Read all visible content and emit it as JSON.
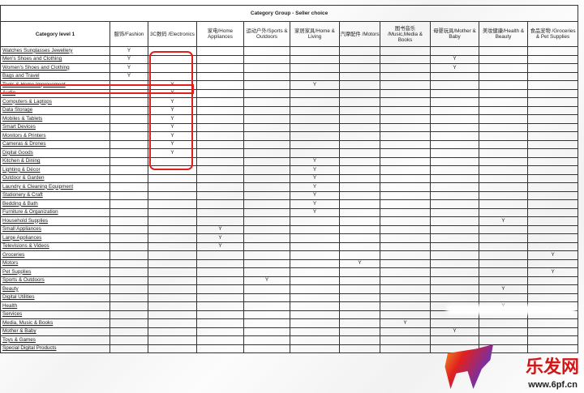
{
  "table": {
    "group_title": "Category Group - Seller choice",
    "first_header": "Category level 1",
    "columns": [
      "服饰/Fashion",
      "3C数码 /Electronics",
      "家电/Home Appliances",
      "运动户外/Sports & Outdoors",
      "家居家具/Home & Living",
      "汽摩配件 /Motors",
      "图书音乐 /Music,Media & Books",
      "母婴玩具/Mother & Baby",
      "美妆健康/Health & Beauty",
      "食品宠物 /Groceries & Pet Supplies"
    ],
    "mark": "Y",
    "rows": [
      {
        "label": "Watches Sunglasses Jewellery",
        "y": [
          0
        ]
      },
      {
        "label": "Men's Shoes and Clothing",
        "y": [
          0,
          7
        ]
      },
      {
        "label": "Women's Shoes and Clothing",
        "y": [
          0,
          7
        ]
      },
      {
        "label": "Bags and Travel",
        "y": [
          0
        ]
      },
      {
        "label": "Tools & Home Improvement",
        "y": [
          1,
          4
        ]
      },
      {
        "label": "Audio",
        "y": [
          1
        ]
      },
      {
        "label": "Computers & Laptops",
        "y": [
          1
        ]
      },
      {
        "label": "Data Storage",
        "y": [
          1
        ]
      },
      {
        "label": "Mobiles & Tablets",
        "y": [
          1
        ]
      },
      {
        "label": "Smart Devices",
        "y": [
          1
        ]
      },
      {
        "label": "Monitors & Printers",
        "y": [
          1
        ]
      },
      {
        "label": "Cameras & Drones",
        "y": [
          1
        ]
      },
      {
        "label": "Digital Goods",
        "y": [
          1
        ]
      },
      {
        "label": "Kitchen & Dining",
        "y": [
          4
        ]
      },
      {
        "label": "Lighting & Décor",
        "y": [
          4
        ]
      },
      {
        "label": "Outdoor & Garden",
        "y": [
          4
        ]
      },
      {
        "label": "Laundry & Cleaning Equipment",
        "y": [
          4
        ]
      },
      {
        "label": "Stationery & Craft",
        "y": [
          4
        ]
      },
      {
        "label": "Bedding & Bath",
        "y": [
          4
        ]
      },
      {
        "label": "Furniture & Organization",
        "y": [
          4
        ]
      },
      {
        "label": "Household Supplies",
        "y": [
          8
        ]
      },
      {
        "label": "Small Appliances",
        "y": [
          2
        ]
      },
      {
        "label": "Large Appliances",
        "y": [
          2
        ]
      },
      {
        "label": "Televisions & Videos",
        "y": [
          2
        ]
      },
      {
        "label": "Groceries",
        "y": [
          9
        ]
      },
      {
        "label": "Motors",
        "y": [
          5
        ]
      },
      {
        "label": "Pet Supplies",
        "y": [
          9
        ]
      },
      {
        "label": "Sports & Outdoors",
        "y": [
          3
        ]
      },
      {
        "label": "Beauty",
        "y": [
          8
        ]
      },
      {
        "label": "Digital Utilities",
        "y": []
      },
      {
        "label": "Health",
        "y": [
          8
        ]
      },
      {
        "label": "Services",
        "y": []
      },
      {
        "label": "Media, Music & Books",
        "y": [
          6
        ]
      },
      {
        "label": "Mother & Baby",
        "y": [
          7
        ]
      },
      {
        "label": "Toys & Games",
        "y": []
      },
      {
        "label": "Special Digital Products",
        "y": []
      }
    ]
  },
  "watermark": {
    "brand": "乐发网",
    "url": "www.6pf.cn"
  },
  "colors": {
    "highlight": "#e0201e"
  }
}
